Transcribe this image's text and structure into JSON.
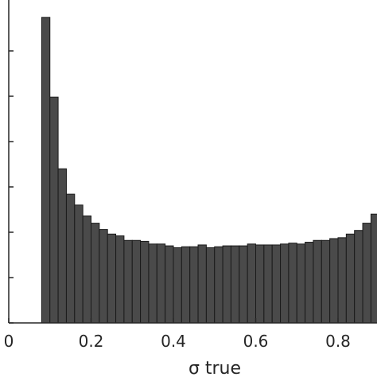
{
  "chart_data": {
    "type": "bar",
    "title": "",
    "xlabel": "σ true",
    "ylabel": "",
    "x_range": [
      0,
      0.89
    ],
    "x_ticks": [
      0,
      0.2,
      0.4,
      0.6,
      0.8
    ],
    "x_tick_labels": [
      "0",
      "0.2",
      "0.4",
      "0.6",
      "0.8"
    ],
    "grid": false,
    "bar_color": "#4a4a4a",
    "bin_width": 0.02,
    "bin_starts": [
      0.08,
      0.1,
      0.12,
      0.14,
      0.16,
      0.18,
      0.2,
      0.22,
      0.24,
      0.26,
      0.28,
      0.3,
      0.32,
      0.34,
      0.36,
      0.38,
      0.4,
      0.42,
      0.44,
      0.46,
      0.48,
      0.5,
      0.52,
      0.54,
      0.56,
      0.58,
      0.6,
      0.62,
      0.64,
      0.66,
      0.68,
      0.7,
      0.72,
      0.74,
      0.76,
      0.78,
      0.8,
      0.82,
      0.84,
      0.86,
      0.88
    ],
    "values": [
      3.37,
      2.49,
      1.7,
      1.42,
      1.3,
      1.18,
      1.1,
      1.03,
      0.98,
      0.96,
      0.91,
      0.91,
      0.9,
      0.87,
      0.87,
      0.85,
      0.83,
      0.84,
      0.84,
      0.86,
      0.83,
      0.84,
      0.85,
      0.85,
      0.85,
      0.87,
      0.86,
      0.86,
      0.86,
      0.87,
      0.88,
      0.87,
      0.89,
      0.91,
      0.91,
      0.93,
      0.94,
      0.98,
      1.02,
      1.1,
      1.2
    ]
  }
}
